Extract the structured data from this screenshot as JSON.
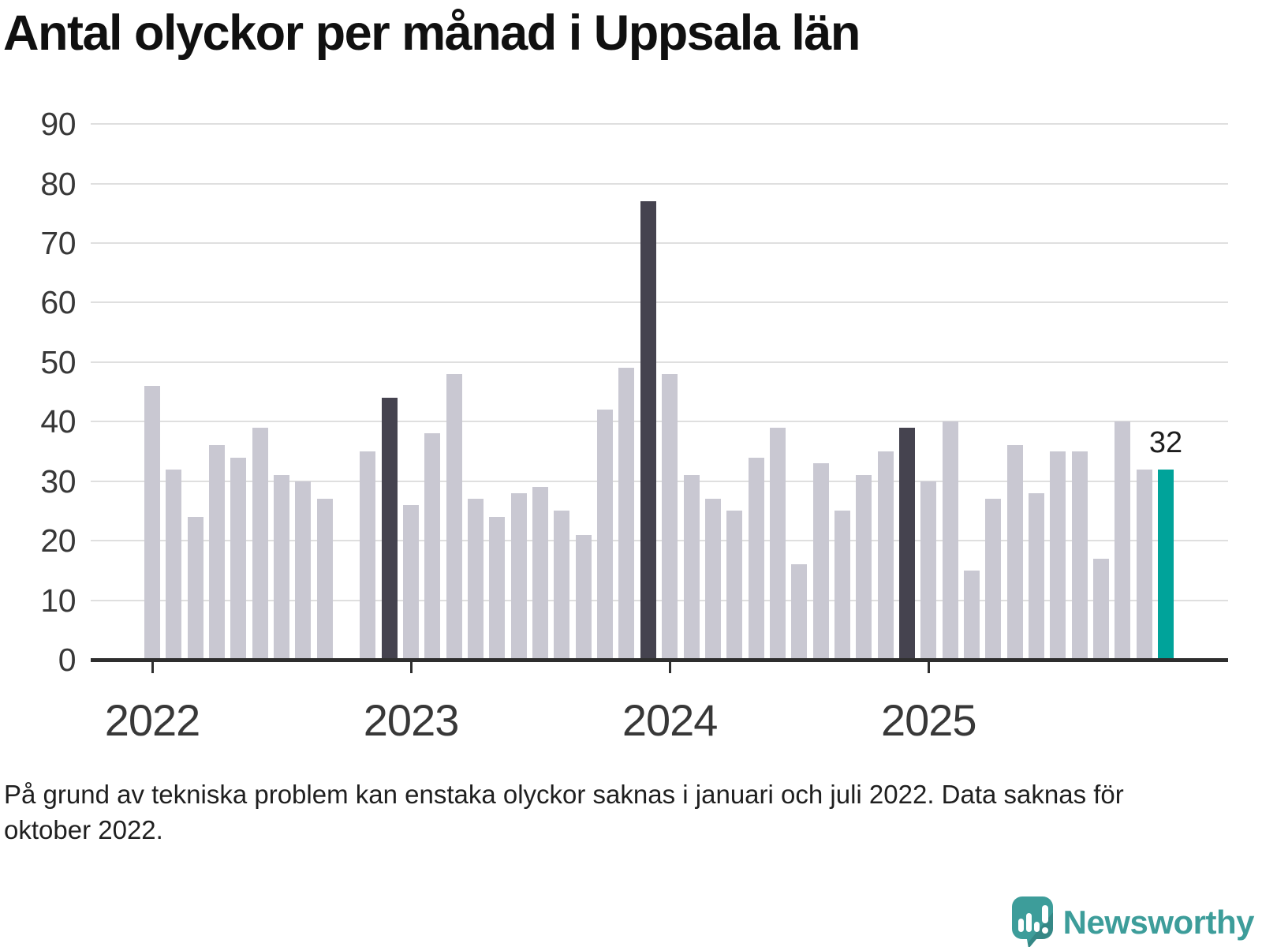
{
  "title": "Antal olyckor per månad i Uppsala län",
  "footnote": "På grund av tekniska problem kan enstaka olyckor saknas i januari och juli 2022. Data saknas för\noktober 2022.",
  "branding": {
    "logo_text": "Newsworthy",
    "logo_icon": "newsworthy-speech-bubble-bar-chart-icon"
  },
  "colors": {
    "bar_default": "#c9c8d2",
    "bar_december": "#45434f",
    "bar_latest": "#00a39a",
    "axis": "#2e2e2e",
    "gridline": "#dfdfdf",
    "tick_text": "#383838",
    "title_text": "#101010",
    "footnote_text": "#1f1f1f",
    "logo_teal": "#3d9d9a"
  },
  "chart_data": {
    "type": "bar",
    "title": "Antal olyckor per månad i Uppsala län",
    "xlabel": "",
    "ylabel": "",
    "ylim": [
      0,
      90
    ],
    "grid": true,
    "legend": false,
    "yticks": [
      0,
      10,
      20,
      30,
      40,
      50,
      60,
      70,
      80,
      90
    ],
    "year_ticks": [
      {
        "label": "2022",
        "slot": 0
      },
      {
        "label": "2023",
        "slot": 12
      },
      {
        "label": "2024",
        "slot": 24
      },
      {
        "label": "2025",
        "slot": 36
      }
    ],
    "missing_note": "2022-10 has no bar (data missing)",
    "annotation": {
      "month": "2025-12",
      "text": "32"
    },
    "series": [
      {
        "month": "2022-01",
        "value": 46,
        "style": "default"
      },
      {
        "month": "2022-02",
        "value": 32,
        "style": "default"
      },
      {
        "month": "2022-03",
        "value": 24,
        "style": "default"
      },
      {
        "month": "2022-04",
        "value": 36,
        "style": "default"
      },
      {
        "month": "2022-05",
        "value": 34,
        "style": "default"
      },
      {
        "month": "2022-06",
        "value": 39,
        "style": "default"
      },
      {
        "month": "2022-07",
        "value": 31,
        "style": "default"
      },
      {
        "month": "2022-08",
        "value": 30,
        "style": "default"
      },
      {
        "month": "2022-09",
        "value": 27,
        "style": "default"
      },
      {
        "month": "2022-10",
        "value": null,
        "style": "missing"
      },
      {
        "month": "2022-11",
        "value": 35,
        "style": "default"
      },
      {
        "month": "2022-12",
        "value": 44,
        "style": "december"
      },
      {
        "month": "2023-01",
        "value": 26,
        "style": "default"
      },
      {
        "month": "2023-02",
        "value": 38,
        "style": "default"
      },
      {
        "month": "2023-03",
        "value": 48,
        "style": "default"
      },
      {
        "month": "2023-04",
        "value": 27,
        "style": "default"
      },
      {
        "month": "2023-05",
        "value": 24,
        "style": "default"
      },
      {
        "month": "2023-06",
        "value": 28,
        "style": "default"
      },
      {
        "month": "2023-07",
        "value": 29,
        "style": "default"
      },
      {
        "month": "2023-08",
        "value": 25,
        "style": "default"
      },
      {
        "month": "2023-09",
        "value": 21,
        "style": "default"
      },
      {
        "month": "2023-10",
        "value": 42,
        "style": "default"
      },
      {
        "month": "2023-11",
        "value": 49,
        "style": "default"
      },
      {
        "month": "2023-12",
        "value": 77,
        "style": "december"
      },
      {
        "month": "2024-01",
        "value": 48,
        "style": "default"
      },
      {
        "month": "2024-02",
        "value": 31,
        "style": "default"
      },
      {
        "month": "2024-03",
        "value": 27,
        "style": "default"
      },
      {
        "month": "2024-04",
        "value": 25,
        "style": "default"
      },
      {
        "month": "2024-05",
        "value": 34,
        "style": "default"
      },
      {
        "month": "2024-06",
        "value": 39,
        "style": "default"
      },
      {
        "month": "2024-07",
        "value": 16,
        "style": "default"
      },
      {
        "month": "2024-08",
        "value": 33,
        "style": "default"
      },
      {
        "month": "2024-09",
        "value": 25,
        "style": "default"
      },
      {
        "month": "2024-10",
        "value": 31,
        "style": "default"
      },
      {
        "month": "2024-11",
        "value": 35,
        "style": "default"
      },
      {
        "month": "2024-12",
        "value": 39,
        "style": "december"
      },
      {
        "month": "2025-01",
        "value": 30,
        "style": "default"
      },
      {
        "month": "2025-02",
        "value": 40,
        "style": "default"
      },
      {
        "month": "2025-03",
        "value": 15,
        "style": "default"
      },
      {
        "month": "2025-04",
        "value": 27,
        "style": "default"
      },
      {
        "month": "2025-05",
        "value": 36,
        "style": "default"
      },
      {
        "month": "2025-06",
        "value": 28,
        "style": "default"
      },
      {
        "month": "2025-07",
        "value": 35,
        "style": "default"
      },
      {
        "month": "2025-08",
        "value": 35,
        "style": "default"
      },
      {
        "month": "2025-09",
        "value": 17,
        "style": "default"
      },
      {
        "month": "2025-10",
        "value": 40,
        "style": "default"
      },
      {
        "month": "2025-11",
        "value": 32,
        "style": "default"
      },
      {
        "month": "2025-12",
        "value": 32,
        "style": "latest"
      }
    ]
  }
}
